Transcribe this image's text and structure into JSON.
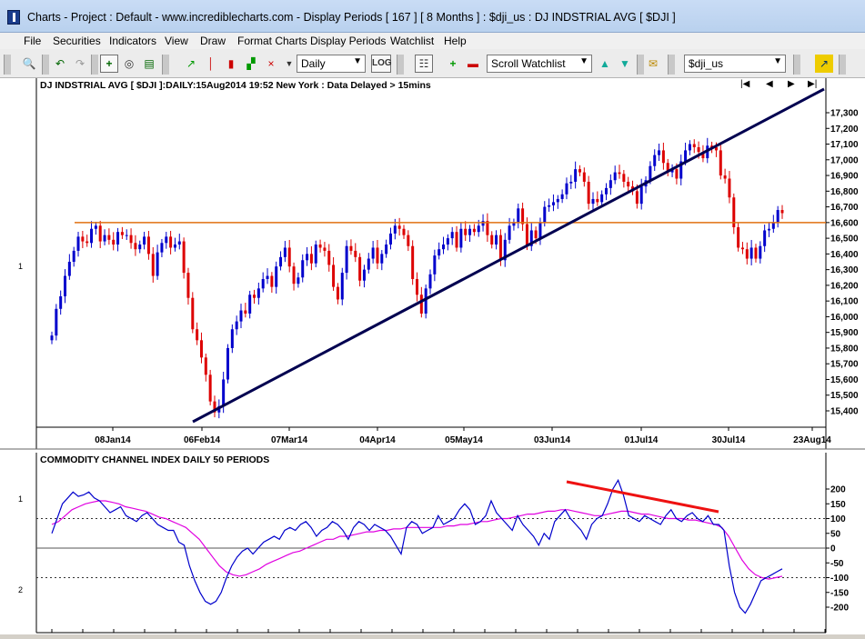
{
  "window": {
    "title": "Charts - Project : Default - www.incrediblecharts.com - Display Periods  [ 167 ]  [ 8 Months ] : $dji_us : DJ INDSTRIAL AVG  [ $DJI ]"
  },
  "menu": [
    "File",
    "Securities",
    "Indicators",
    "View",
    "Draw",
    "Format Charts",
    "Display Periods",
    "Watchlist",
    "Help"
  ],
  "toolbar": {
    "period_select": "Daily",
    "log_label": "LOG",
    "watchlist_select": "Scroll Watchlist",
    "symbol_select": "$dji_us"
  },
  "colors": {
    "up_candle": "#0000cc",
    "down_candle": "#dd0000",
    "trendline": "#000050",
    "horizontal_line": "#e07010",
    "cci_line": "#0000cc",
    "cci_ma": "#e000e0",
    "cci_trendline": "#ee1111"
  },
  "price_panel": {
    "header": "DJ INDSTRIAL AVG [ $DJI ]:DAILY:15Aug2014 19:52 New York : Data Delayed > 15mins",
    "y_ticks": [
      "17,300",
      "17,200",
      "17,100",
      "17,000",
      "16,900",
      "16,800",
      "16,700",
      "16,600",
      "16,500",
      "16,400",
      "16,300",
      "16,200",
      "16,100",
      "16,000",
      "15,900",
      "15,800",
      "15,700",
      "15,600",
      "15,500",
      "15,400"
    ],
    "x_ticks": [
      "08Jan14",
      "06Feb14",
      "07Mar14",
      "04Apr14",
      "05May14",
      "03Jun14",
      "01Jul14",
      "30Jul14",
      "23Aug14"
    ],
    "panel_label": "1",
    "horizontal_level": 16600,
    "nav_buttons": [
      "|◀",
      "◀",
      "▶",
      "▶|"
    ]
  },
  "cci_panel": {
    "header": "COMMODITY CHANNEL INDEX DAILY 50 PERIODS",
    "y_ticks": [
      "200",
      "150",
      "100",
      "50",
      "0",
      "-50",
      "-100",
      "-150",
      "-200"
    ],
    "panel_labels": [
      "1",
      "2"
    ]
  },
  "chart_data": [
    {
      "type": "candlestick",
      "title": "DJ INDSTRIAL AVG [ $DJI ]:DAILY:15Aug2014 19:52 New York : Data Delayed > 15mins",
      "ylim": [
        15320,
        17400
      ],
      "x_ticks": [
        "08Jan14",
        "06Feb14",
        "07Mar14",
        "04Apr14",
        "05May14",
        "03Jun14",
        "01Jul14",
        "30Jul14",
        "23Aug14"
      ],
      "close": [
        15880,
        16050,
        16130,
        16260,
        16350,
        16420,
        16510,
        16480,
        16470,
        16560,
        16580,
        16480,
        16520,
        16490,
        16460,
        16540,
        16520,
        16520,
        16470,
        16430,
        16460,
        16510,
        16400,
        16260,
        16410,
        16470,
        16510,
        16440,
        16460,
        16480,
        16280,
        16120,
        15920,
        15850,
        15740,
        15630,
        15460,
        15390,
        15430,
        15600,
        15800,
        15920,
        15970,
        16040,
        16020,
        16140,
        16120,
        16180,
        16240,
        16260,
        16190,
        16320,
        16380,
        16440,
        16320,
        16210,
        16250,
        16360,
        16400,
        16340,
        16460,
        16440,
        16420,
        16330,
        16190,
        16110,
        16280,
        16450,
        16420,
        16380,
        16230,
        16300,
        16370,
        16440,
        16340,
        16400,
        16460,
        16530,
        16580,
        16560,
        16520,
        16450,
        16240,
        16140,
        16020,
        16180,
        16270,
        16390,
        16430,
        16460,
        16500,
        16540,
        16440,
        16560,
        16520,
        16560,
        16540,
        16580,
        16610,
        16520,
        16460,
        16520,
        16360,
        16490,
        16580,
        16600,
        16690,
        16590,
        16450,
        16550,
        16500,
        16600,
        16700,
        16710,
        16730,
        16750,
        16780,
        16850,
        16860,
        16940,
        16920,
        16860,
        16720,
        16750,
        16730,
        16780,
        16820,
        16870,
        16920,
        16910,
        16860,
        16830,
        16800,
        16720,
        16830,
        16870,
        16960,
        17030,
        17060,
        16980,
        16920,
        16940,
        16880,
        16990,
        17060,
        17100,
        17080,
        17050,
        17010,
        17090,
        17080,
        17060,
        16900,
        16880,
        16760,
        16570,
        16440,
        16430,
        16370,
        16440,
        16370,
        16450,
        16550,
        16560,
        16600,
        16680,
        16660
      ],
      "series": [
        {
          "name": "",
          "points": [
            [
              1,
              15380
            ],
            [
              85,
              17370
            ]
          ]
        }
      ],
      "horizontal_line": 16600
    },
    {
      "type": "line",
      "title": "COMMODITY CHANNEL INDEX DAILY 50 PERIODS",
      "ylim": [
        -230,
        230
      ],
      "cci": [
        50,
        100,
        150,
        170,
        190,
        175,
        180,
        190,
        170,
        160,
        140,
        120,
        130,
        140,
        110,
        100,
        90,
        110,
        120,
        100,
        80,
        70,
        60,
        60,
        20,
        10,
        -60,
        -110,
        -150,
        -180,
        -190,
        -180,
        -150,
        -100,
        -60,
        -30,
        -10,
        0,
        -20,
        0,
        20,
        30,
        40,
        30,
        60,
        70,
        60,
        80,
        90,
        70,
        40,
        60,
        70,
        90,
        80,
        60,
        30,
        70,
        90,
        80,
        60,
        80,
        70,
        60,
        40,
        10,
        -20,
        70,
        90,
        80,
        50,
        60,
        70,
        110,
        80,
        90,
        100,
        130,
        150,
        130,
        80,
        90,
        110,
        160,
        120,
        100,
        80,
        60,
        110,
        80,
        60,
        40,
        10,
        50,
        30,
        90,
        110,
        130,
        100,
        80,
        60,
        30,
        80,
        100,
        110,
        150,
        200,
        230,
        180,
        110,
        100,
        90,
        110,
        100,
        90,
        80,
        110,
        130,
        100,
        90,
        110,
        120,
        100,
        90,
        110,
        80,
        80,
        60,
        -60,
        -150,
        -200,
        -220,
        -190,
        -150,
        -110,
        -100,
        -90,
        -80,
        -70
      ],
      "ma": [
        80,
        90,
        110,
        130,
        140,
        150,
        155,
        160,
        160,
        155,
        150,
        140,
        135,
        130,
        125,
        115,
        105,
        100,
        90,
        80,
        70,
        50,
        30,
        0,
        -30,
        -60,
        -80,
        -90,
        -95,
        -90,
        -80,
        -70,
        -55,
        -45,
        -35,
        -25,
        -15,
        -10,
        0,
        10,
        20,
        30,
        30,
        40,
        40,
        45,
        50,
        55,
        55,
        60,
        60,
        65,
        65,
        70,
        70,
        70,
        70,
        70,
        70,
        75,
        75,
        80,
        80,
        85,
        90,
        90,
        95,
        100,
        100,
        105,
        110,
        115,
        115,
        120,
        125,
        125,
        130,
        130,
        125,
        120,
        115,
        110,
        110,
        115,
        120,
        125,
        125,
        120,
        115,
        115,
        110,
        105,
        100,
        100,
        100,
        95,
        95,
        90,
        85,
        80,
        70,
        40,
        0,
        -40,
        -70,
        -90,
        -100,
        -105,
        -100,
        -95
      ]
    }
  ]
}
